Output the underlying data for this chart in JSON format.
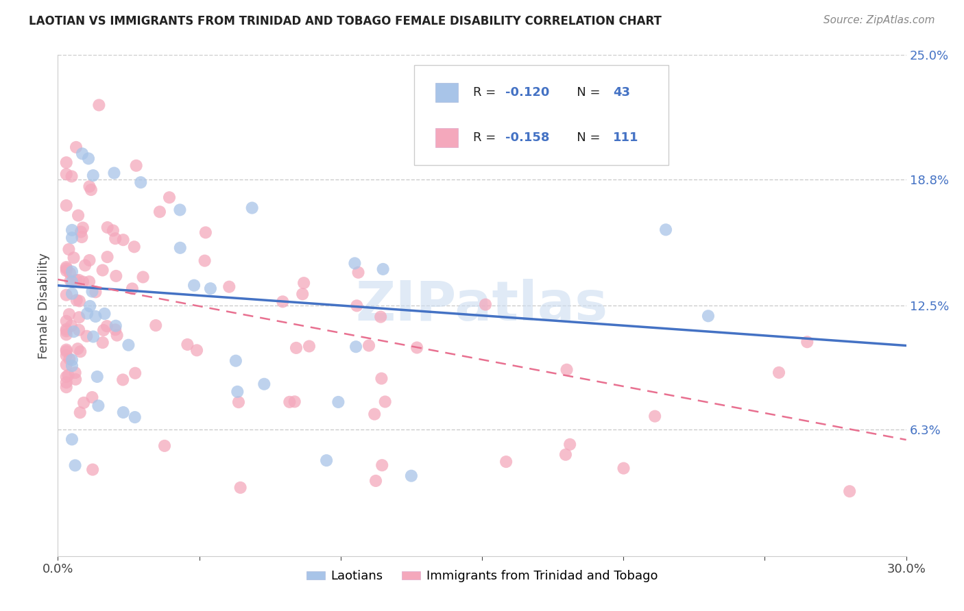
{
  "title": "LAOTIAN VS IMMIGRANTS FROM TRINIDAD AND TOBAGO FEMALE DISABILITY CORRELATION CHART",
  "source": "Source: ZipAtlas.com",
  "ylabel": "Female Disability",
  "xlim": [
    0.0,
    0.3
  ],
  "ylim": [
    0.0,
    0.25
  ],
  "xtick_positions": [
    0.0,
    0.05,
    0.1,
    0.15,
    0.2,
    0.25,
    0.3
  ],
  "xticklabels": [
    "0.0%",
    "",
    "",
    "",
    "",
    "",
    "30.0%"
  ],
  "ytick_positions": [
    0.063,
    0.125,
    0.188,
    0.25
  ],
  "ytick_labels": [
    "6.3%",
    "12.5%",
    "18.8%",
    "25.0%"
  ],
  "grid_color": "#cccccc",
  "background_color": "#ffffff",
  "watermark": "ZIPatlas",
  "legend_r1": "-0.120",
  "legend_n1": "43",
  "legend_r2": "-0.158",
  "legend_n2": "111",
  "color_laotian": "#a8c4e8",
  "color_trinidad": "#f4a8bc",
  "trendline_laotian_color": "#4472c4",
  "trendline_trinidad_color": "#e87090",
  "trendline_laotian_start_y": 0.135,
  "trendline_laotian_end_y": 0.105,
  "trendline_trinidad_start_y": 0.138,
  "trendline_trinidad_end_y": 0.058,
  "title_fontsize": 12,
  "axis_fontsize": 13,
  "legend_fontsize": 13
}
